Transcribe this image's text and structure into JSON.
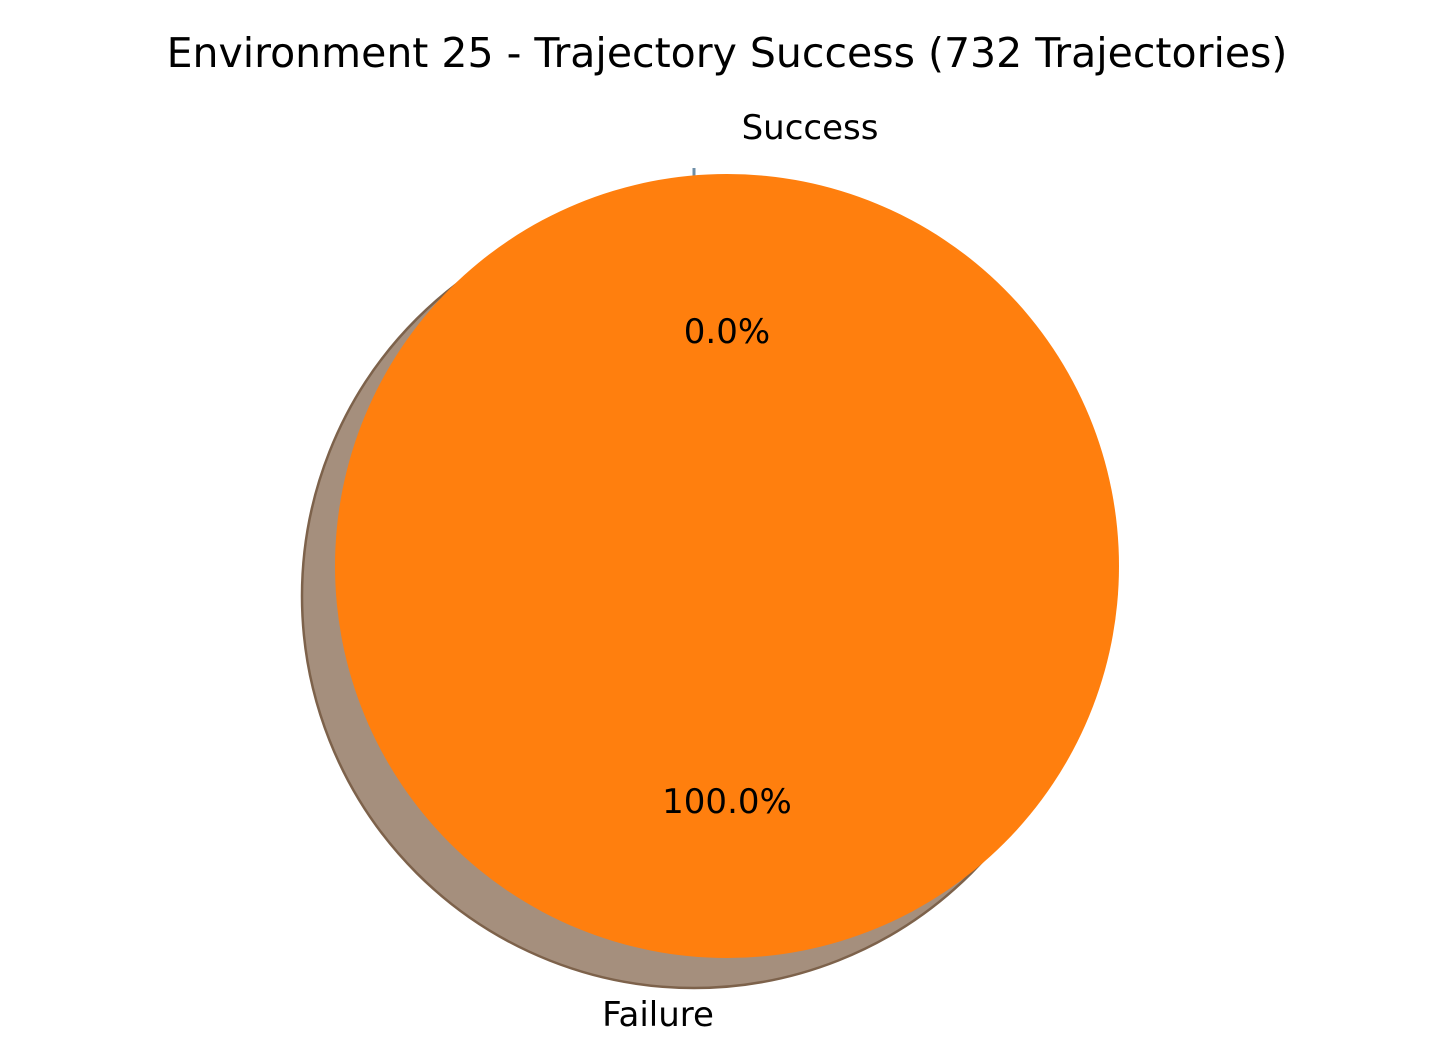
{
  "chart_data": {
    "type": "pie",
    "title": "Environment 25 - Trajectory Success (732 Trajectories)",
    "categories": [
      "Success",
      "Failure"
    ],
    "values": [
      0,
      732
    ],
    "percent_labels": [
      "0.0%",
      "100.0%"
    ],
    "colors": [
      "#1f77b4",
      "#ff7f0e"
    ],
    "shadow": true,
    "legend": "none"
  }
}
